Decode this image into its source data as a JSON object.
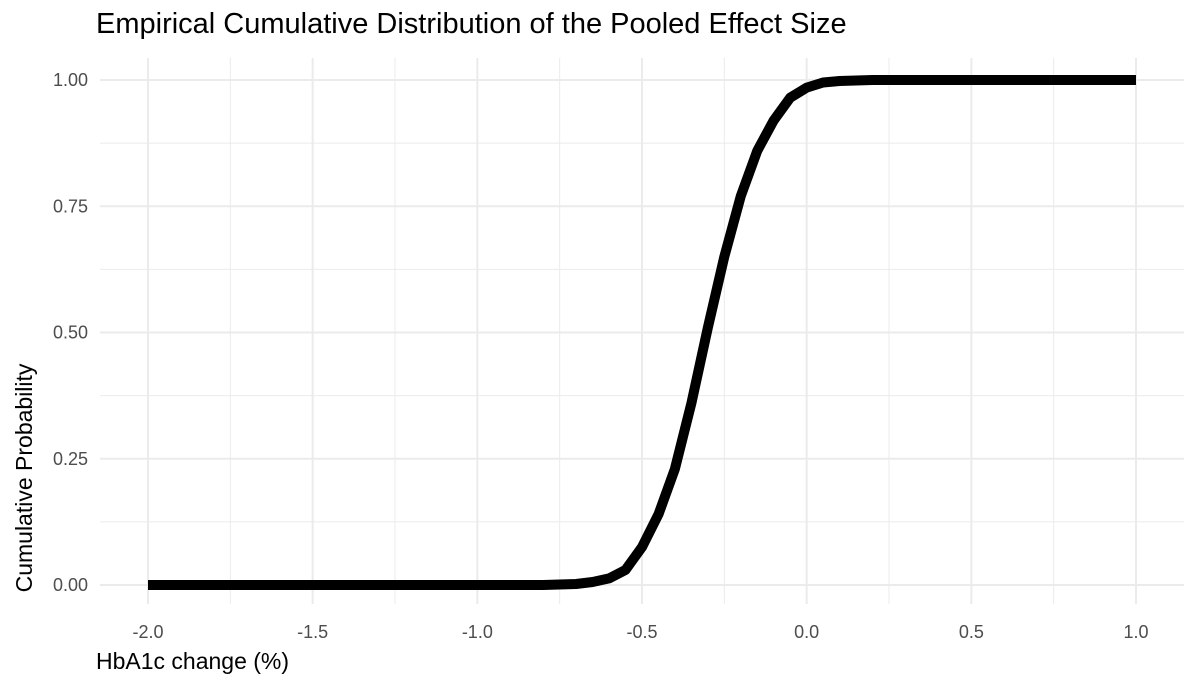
{
  "chart_data": {
    "type": "line",
    "title": "Empirical Cumulative Distribution of the Pooled Effect Size",
    "xlabel": "HbA1c change (%)",
    "ylabel": "Cumulative Probability",
    "xlim": [
      -2.0,
      1.0
    ],
    "ylim": [
      0.0,
      1.0
    ],
    "x_ticks": [
      "-2.0",
      "-1.5",
      "-1.0",
      "-0.5",
      "0.0",
      "0.5",
      "1.0"
    ],
    "y_ticks": [
      "0.00",
      "0.25",
      "0.50",
      "0.75",
      "1.00"
    ],
    "grid": true,
    "legend": "none",
    "line_color": "#000000",
    "grid_color": "#ebebeb",
    "series": [
      {
        "x": [
          -2.0,
          -1.0,
          -0.8,
          -0.7,
          -0.65,
          -0.6,
          -0.55,
          -0.5,
          -0.45,
          -0.4,
          -0.35,
          -0.3,
          -0.25,
          -0.2,
          -0.15,
          -0.1,
          -0.05,
          0.0,
          0.05,
          0.1,
          0.2,
          0.5,
          1.0
        ],
        "y": [
          0.0,
          0.0,
          0.0,
          0.002,
          0.006,
          0.013,
          0.03,
          0.075,
          0.14,
          0.23,
          0.36,
          0.51,
          0.65,
          0.77,
          0.86,
          0.92,
          0.965,
          0.985,
          0.995,
          0.998,
          1.0,
          1.0,
          1.0
        ]
      }
    ]
  }
}
